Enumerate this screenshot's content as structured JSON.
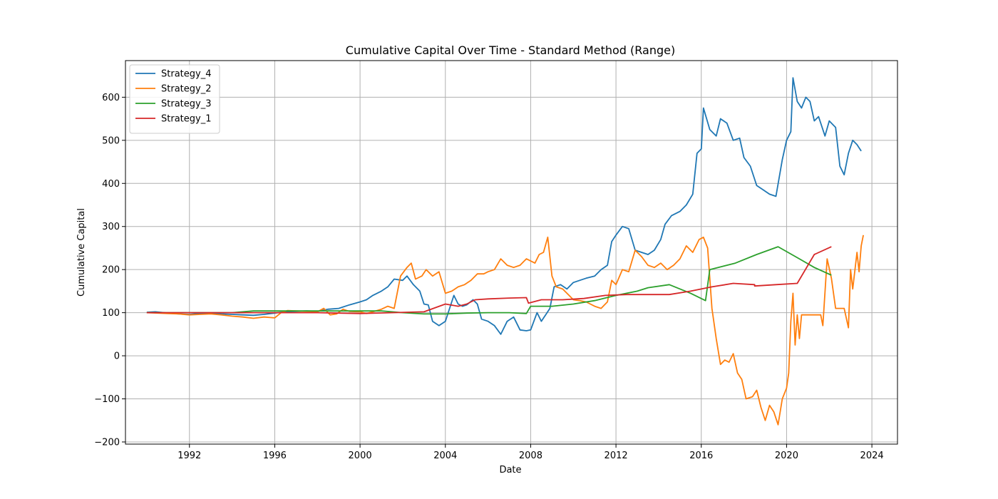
{
  "chart_data": {
    "type": "line",
    "title": "Cumulative Capital Over Time - Standard Method (Range)",
    "xlabel": "Date",
    "ylabel": "Cumulative Capital",
    "xlim": [
      1989.0,
      2025.2
    ],
    "ylim": [
      -205,
      685
    ],
    "x_ticks": [
      1992,
      1996,
      2000,
      2004,
      2008,
      2012,
      2016,
      2020,
      2024
    ],
    "y_ticks": [
      -200,
      -100,
      0,
      100,
      200,
      300,
      400,
      500,
      600
    ],
    "grid": true,
    "legend_position": "top-left",
    "series": [
      {
        "name": "Strategy_4",
        "color": "#1f77b4",
        "points": [
          [
            1990.0,
            101
          ],
          [
            1990.4,
            102
          ],
          [
            1991.0,
            99
          ],
          [
            1991.5,
            97
          ],
          [
            1992.0,
            96
          ],
          [
            1992.5,
            98
          ],
          [
            1993.0,
            99
          ],
          [
            1993.5,
            97
          ],
          [
            1994.0,
            96
          ],
          [
            1994.5,
            95
          ],
          [
            1995.0,
            94
          ],
          [
            1995.5,
            96
          ],
          [
            1996.0,
            99
          ],
          [
            1996.5,
            102
          ],
          [
            1997.0,
            103
          ],
          [
            1997.5,
            104
          ],
          [
            1998.0,
            103
          ],
          [
            1998.5,
            108
          ],
          [
            1999.0,
            110
          ],
          [
            1999.5,
            118
          ],
          [
            2000.0,
            125
          ],
          [
            2000.3,
            130
          ],
          [
            2000.6,
            140
          ],
          [
            2001.0,
            150
          ],
          [
            2001.3,
            160
          ],
          [
            2001.6,
            178
          ],
          [
            2002.0,
            175
          ],
          [
            2002.2,
            185
          ],
          [
            2002.5,
            165
          ],
          [
            2002.8,
            150
          ],
          [
            2003.0,
            120
          ],
          [
            2003.2,
            118
          ],
          [
            2003.4,
            80
          ],
          [
            2003.7,
            70
          ],
          [
            2004.0,
            80
          ],
          [
            2004.2,
            110
          ],
          [
            2004.4,
            140
          ],
          [
            2004.6,
            120
          ],
          [
            2004.8,
            115
          ],
          [
            2005.0,
            118
          ],
          [
            2005.3,
            130
          ],
          [
            2005.5,
            120
          ],
          [
            2005.7,
            85
          ],
          [
            2006.0,
            80
          ],
          [
            2006.3,
            70
          ],
          [
            2006.6,
            50
          ],
          [
            2006.9,
            80
          ],
          [
            2007.2,
            90
          ],
          [
            2007.5,
            60
          ],
          [
            2007.8,
            58
          ],
          [
            2008.0,
            60
          ],
          [
            2008.3,
            100
          ],
          [
            2008.5,
            80
          ],
          [
            2008.7,
            95
          ],
          [
            2008.9,
            110
          ],
          [
            2009.1,
            160
          ],
          [
            2009.4,
            165
          ],
          [
            2009.7,
            155
          ],
          [
            2010.0,
            170
          ],
          [
            2010.3,
            175
          ],
          [
            2010.6,
            180
          ],
          [
            2011.0,
            185
          ],
          [
            2011.3,
            200
          ],
          [
            2011.6,
            210
          ],
          [
            2011.8,
            265
          ],
          [
            2012.0,
            280
          ],
          [
            2012.3,
            300
          ],
          [
            2012.6,
            295
          ],
          [
            2012.9,
            245
          ],
          [
            2013.2,
            240
          ],
          [
            2013.5,
            235
          ],
          [
            2013.8,
            245
          ],
          [
            2014.1,
            270
          ],
          [
            2014.3,
            305
          ],
          [
            2014.6,
            325
          ],
          [
            2015.0,
            335
          ],
          [
            2015.3,
            350
          ],
          [
            2015.6,
            375
          ],
          [
            2015.8,
            470
          ],
          [
            2016.0,
            480
          ],
          [
            2016.1,
            575
          ],
          [
            2016.4,
            525
          ],
          [
            2016.7,
            510
          ],
          [
            2016.9,
            550
          ],
          [
            2017.2,
            540
          ],
          [
            2017.5,
            500
          ],
          [
            2017.8,
            505
          ],
          [
            2018.0,
            460
          ],
          [
            2018.3,
            440
          ],
          [
            2018.6,
            395
          ],
          [
            2018.9,
            385
          ],
          [
            2019.2,
            375
          ],
          [
            2019.5,
            370
          ],
          [
            2019.8,
            455
          ],
          [
            2020.0,
            500
          ],
          [
            2020.2,
            520
          ],
          [
            2020.3,
            645
          ],
          [
            2020.5,
            590
          ],
          [
            2020.7,
            575
          ],
          [
            2020.9,
            600
          ],
          [
            2021.1,
            590
          ],
          [
            2021.3,
            545
          ],
          [
            2021.5,
            555
          ],
          [
            2021.8,
            510
          ],
          [
            2022.0,
            545
          ],
          [
            2022.3,
            530
          ],
          [
            2022.5,
            440
          ],
          [
            2022.7,
            420
          ],
          [
            2022.9,
            470
          ],
          [
            2023.1,
            500
          ],
          [
            2023.3,
            490
          ],
          [
            2023.5,
            475
          ]
        ]
      },
      {
        "name": "Strategy_2",
        "color": "#ff7f0e",
        "points": [
          [
            1990.0,
            100
          ],
          [
            1990.5,
            99
          ],
          [
            1991.0,
            98
          ],
          [
            1991.5,
            97
          ],
          [
            1992.0,
            95
          ],
          [
            1992.5,
            96
          ],
          [
            1993.0,
            97
          ],
          [
            1993.5,
            95
          ],
          [
            1994.0,
            92
          ],
          [
            1994.5,
            90
          ],
          [
            1995.0,
            87
          ],
          [
            1995.5,
            90
          ],
          [
            1996.0,
            88
          ],
          [
            1996.3,
            100
          ],
          [
            1996.6,
            105
          ],
          [
            1997.0,
            104
          ],
          [
            1997.5,
            103
          ],
          [
            1998.0,
            102
          ],
          [
            1998.3,
            110
          ],
          [
            1998.6,
            95
          ],
          [
            1998.9,
            97
          ],
          [
            1999.2,
            108
          ],
          [
            1999.5,
            103
          ],
          [
            2000.0,
            102
          ],
          [
            2000.3,
            98
          ],
          [
            2000.6,
            102
          ],
          [
            2001.0,
            108
          ],
          [
            2001.3,
            115
          ],
          [
            2001.6,
            110
          ],
          [
            2001.9,
            185
          ],
          [
            2002.2,
            205
          ],
          [
            2002.4,
            215
          ],
          [
            2002.6,
            178
          ],
          [
            2002.9,
            185
          ],
          [
            2003.1,
            200
          ],
          [
            2003.4,
            185
          ],
          [
            2003.7,
            195
          ],
          [
            2004.0,
            145
          ],
          [
            2004.3,
            150
          ],
          [
            2004.6,
            160
          ],
          [
            2004.9,
            165
          ],
          [
            2005.2,
            175
          ],
          [
            2005.5,
            190
          ],
          [
            2005.8,
            190
          ],
          [
            2006.0,
            195
          ],
          [
            2006.3,
            200
          ],
          [
            2006.6,
            225
          ],
          [
            2006.9,
            210
          ],
          [
            2007.2,
            205
          ],
          [
            2007.5,
            210
          ],
          [
            2007.8,
            225
          ],
          [
            2008.0,
            220
          ],
          [
            2008.2,
            215
          ],
          [
            2008.4,
            235
          ],
          [
            2008.6,
            240
          ],
          [
            2008.8,
            275
          ],
          [
            2009.0,
            185
          ],
          [
            2009.2,
            160
          ],
          [
            2009.5,
            155
          ],
          [
            2009.8,
            140
          ],
          [
            2010.0,
            130
          ],
          [
            2010.3,
            128
          ],
          [
            2010.6,
            125
          ],
          [
            2011.0,
            115
          ],
          [
            2011.3,
            110
          ],
          [
            2011.6,
            125
          ],
          [
            2011.8,
            175
          ],
          [
            2012.0,
            165
          ],
          [
            2012.3,
            200
          ],
          [
            2012.6,
            195
          ],
          [
            2012.9,
            245
          ],
          [
            2013.2,
            230
          ],
          [
            2013.5,
            210
          ],
          [
            2013.8,
            205
          ],
          [
            2014.1,
            215
          ],
          [
            2014.4,
            200
          ],
          [
            2014.7,
            210
          ],
          [
            2015.0,
            225
          ],
          [
            2015.3,
            255
          ],
          [
            2015.6,
            240
          ],
          [
            2015.9,
            270
          ],
          [
            2016.1,
            275
          ],
          [
            2016.3,
            250
          ],
          [
            2016.5,
            110
          ],
          [
            2016.7,
            40
          ],
          [
            2016.9,
            -20
          ],
          [
            2017.1,
            -10
          ],
          [
            2017.3,
            -15
          ],
          [
            2017.5,
            5
          ],
          [
            2017.7,
            -40
          ],
          [
            2017.9,
            -55
          ],
          [
            2018.1,
            -100
          ],
          [
            2018.4,
            -95
          ],
          [
            2018.6,
            -80
          ],
          [
            2018.8,
            -120
          ],
          [
            2019.0,
            -150
          ],
          [
            2019.2,
            -115
          ],
          [
            2019.4,
            -130
          ],
          [
            2019.6,
            -160
          ],
          [
            2019.8,
            -100
          ],
          [
            2020.0,
            -75
          ],
          [
            2020.1,
            -40
          ],
          [
            2020.2,
            80
          ],
          [
            2020.3,
            145
          ],
          [
            2020.4,
            25
          ],
          [
            2020.5,
            95
          ],
          [
            2020.6,
            40
          ],
          [
            2020.7,
            95
          ],
          [
            2021.0,
            95
          ],
          [
            2021.3,
            95
          ],
          [
            2021.6,
            95
          ],
          [
            2021.7,
            70
          ],
          [
            2021.9,
            225
          ],
          [
            2022.1,
            180
          ],
          [
            2022.3,
            110
          ],
          [
            2022.5,
            110
          ],
          [
            2022.7,
            110
          ],
          [
            2022.9,
            65
          ],
          [
            2023.0,
            200
          ],
          [
            2023.1,
            155
          ],
          [
            2023.3,
            240
          ],
          [
            2023.4,
            195
          ],
          [
            2023.5,
            255
          ],
          [
            2023.6,
            280
          ]
        ]
      },
      {
        "name": "Strategy_3",
        "color": "#2ca02c",
        "points": [
          [
            1990.0,
            100
          ],
          [
            1991.0,
            100
          ],
          [
            1992.0,
            100
          ],
          [
            1993.0,
            100
          ],
          [
            1994.0,
            100
          ],
          [
            1995.0,
            104
          ],
          [
            1996.0,
            104
          ],
          [
            1997.0,
            104
          ],
          [
            1998.0,
            104
          ],
          [
            1999.0,
            104
          ],
          [
            2000.0,
            104
          ],
          [
            2001.0,
            104
          ],
          [
            2002.0,
            100
          ],
          [
            2003.0,
            97
          ],
          [
            2004.0,
            97
          ],
          [
            2005.0,
            99
          ],
          [
            2006.0,
            100
          ],
          [
            2007.0,
            100
          ],
          [
            2007.8,
            98
          ],
          [
            2008.0,
            115
          ],
          [
            2009.0,
            115
          ],
          [
            2010.0,
            120
          ],
          [
            2011.0,
            128
          ],
          [
            2012.0,
            140
          ],
          [
            2013.0,
            150
          ],
          [
            2013.5,
            158
          ],
          [
            2014.5,
            165
          ],
          [
            2015.5,
            145
          ],
          [
            2016.2,
            128
          ],
          [
            2016.4,
            200
          ],
          [
            2017.6,
            215
          ],
          [
            2018.6,
            235
          ],
          [
            2019.6,
            253
          ],
          [
            2020.6,
            225
          ],
          [
            2021.3,
            205
          ],
          [
            2022.1,
            187
          ]
        ]
      },
      {
        "name": "Strategy_1",
        "color": "#d62728",
        "points": [
          [
            1990.0,
            100
          ],
          [
            1992.0,
            100
          ],
          [
            1994.0,
            100
          ],
          [
            1996.0,
            100
          ],
          [
            1998.0,
            100
          ],
          [
            2000.0,
            98
          ],
          [
            2001.5,
            100
          ],
          [
            2003.0,
            102
          ],
          [
            2004.0,
            120
          ],
          [
            2004.6,
            115
          ],
          [
            2005.0,
            120
          ],
          [
            2005.4,
            130
          ],
          [
            2006.0,
            132
          ],
          [
            2007.0,
            134
          ],
          [
            2007.8,
            135
          ],
          [
            2007.9,
            122
          ],
          [
            2008.5,
            130
          ],
          [
            2009.5,
            130
          ],
          [
            2010.5,
            133
          ],
          [
            2011.5,
            140
          ],
          [
            2012.5,
            142
          ],
          [
            2013.5,
            142
          ],
          [
            2014.5,
            142
          ],
          [
            2015.5,
            150
          ],
          [
            2016.5,
            160
          ],
          [
            2017.5,
            168
          ],
          [
            2018.5,
            165
          ],
          [
            2018.5,
            162
          ],
          [
            2019.5,
            165
          ],
          [
            2020.5,
            168
          ],
          [
            2021.3,
            235
          ],
          [
            2022.1,
            253
          ]
        ]
      }
    ]
  }
}
